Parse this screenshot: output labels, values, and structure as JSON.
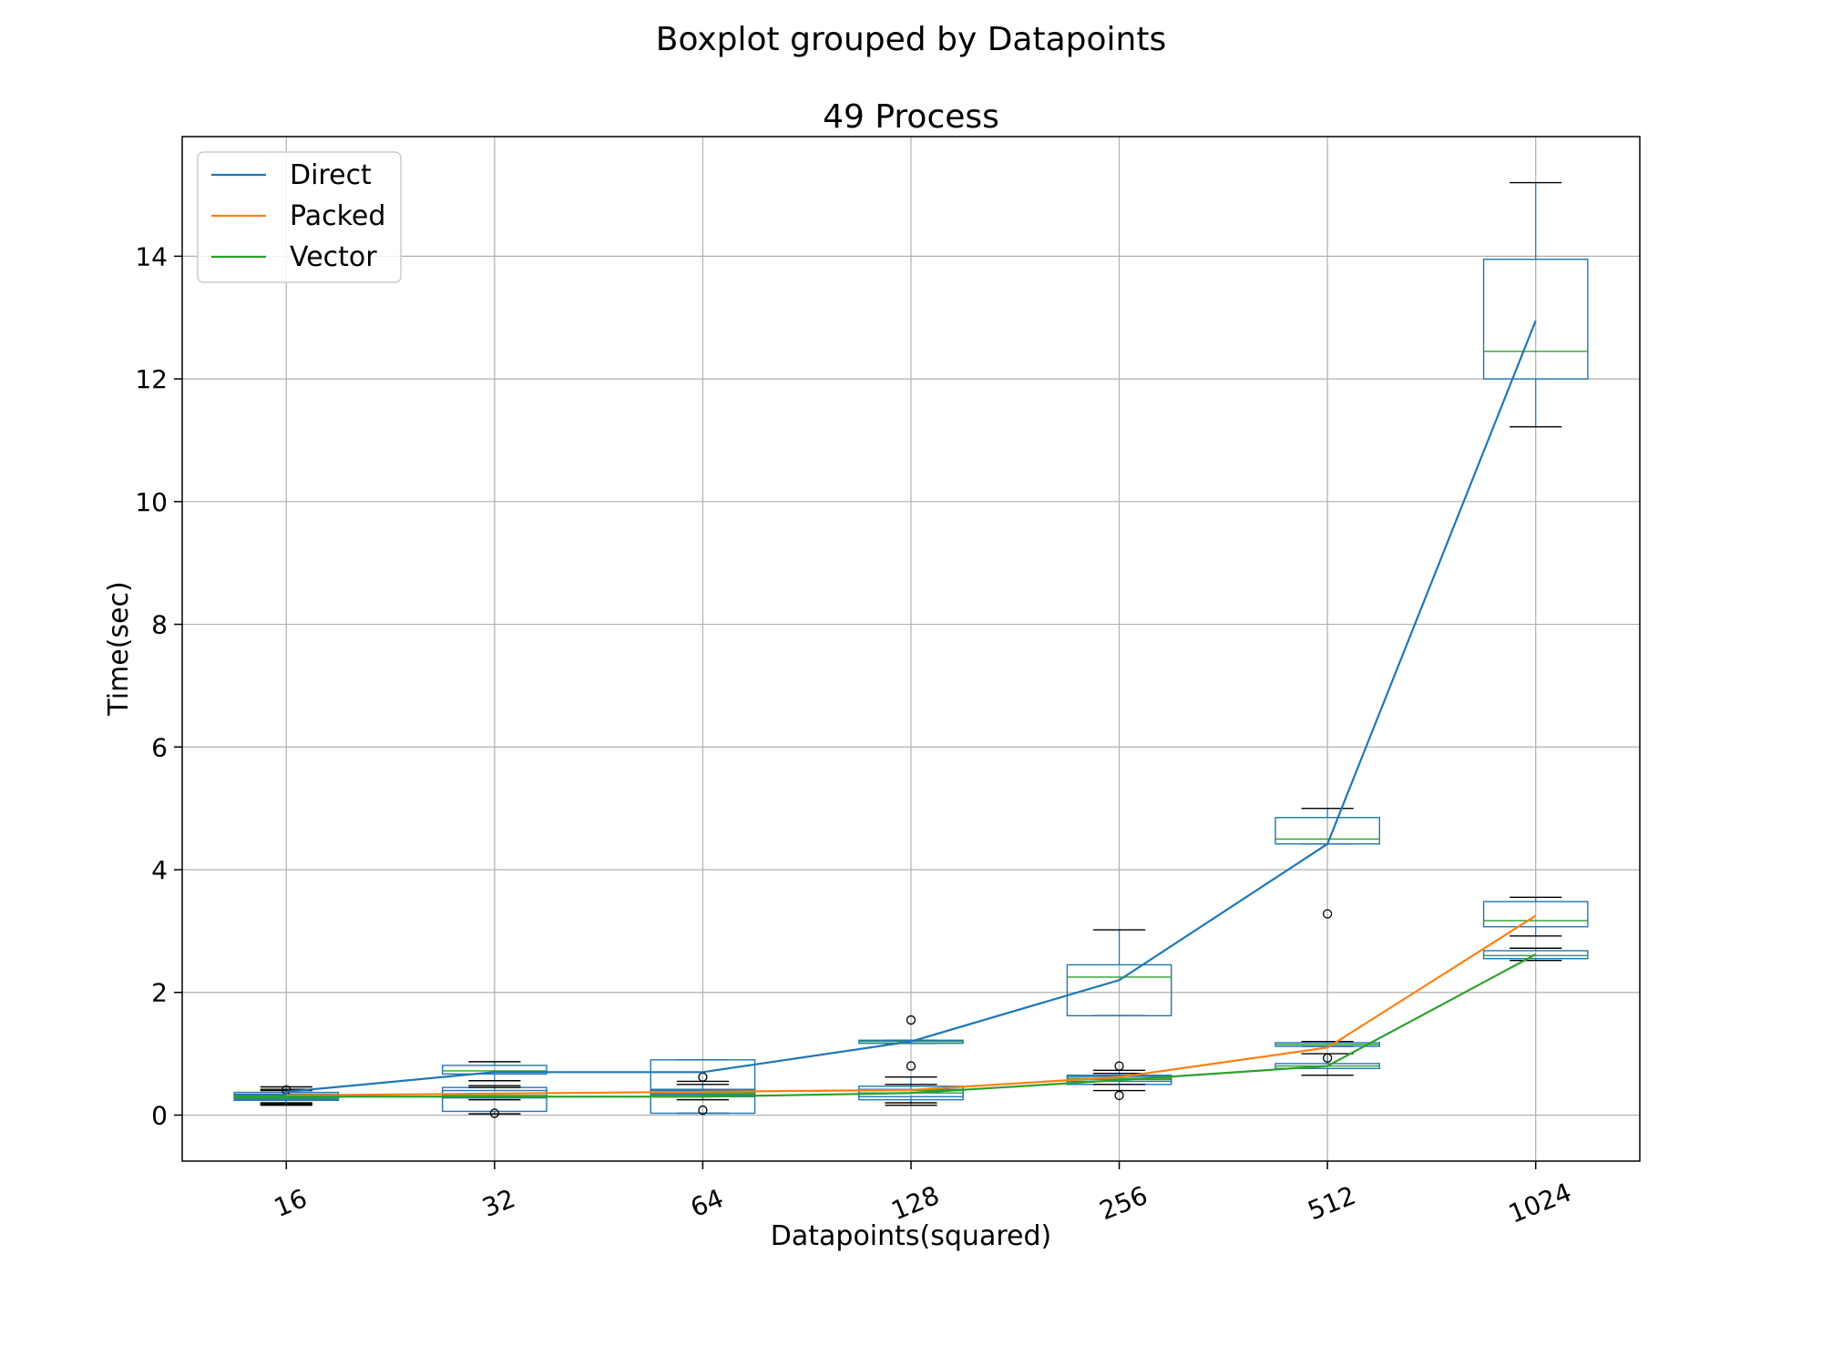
{
  "chart_data": {
    "type": "box",
    "suptitle": "Boxplot grouped by Datapoints",
    "title": "49 Process",
    "xlabel": "Datapoints(squared)",
    "ylabel": "Time(sec)",
    "categories": [
      "16",
      "32",
      "64",
      "128",
      "256",
      "512",
      "1024"
    ],
    "ylim": [
      -0.75,
      15.95
    ],
    "yticks": [
      0,
      2,
      4,
      6,
      8,
      10,
      12,
      14
    ],
    "grid": true,
    "legend_position": "upper-left",
    "series": [
      {
        "name": "Direct",
        "color": "#1f77b4",
        "line": [
          0.38,
          0.7,
          0.7,
          1.2,
          2.2,
          4.42,
          12.95
        ],
        "boxes": [
          {
            "whisker_low": 0.16,
            "q1": 0.26,
            "median": 0.31,
            "q3": 0.37,
            "whisker_high": 0.46,
            "outliers": [
              0.41
            ]
          },
          {
            "whisker_low": 0.56,
            "q1": 0.67,
            "median": 0.72,
            "q3": 0.81,
            "whisker_high": 0.87,
            "outliers": []
          },
          {
            "whisker_low": 0.03,
            "q1": 0.03,
            "median": 0.41,
            "q3": 0.9,
            "whisker_high": 0.9,
            "outliers": [
              0.62,
              0.08
            ]
          },
          {
            "whisker_low": 1.17,
            "q1": 1.17,
            "median": 1.2,
            "q3": 1.22,
            "whisker_high": 1.22,
            "outliers": [
              1.55,
              0.8
            ]
          },
          {
            "whisker_low": 1.62,
            "q1": 1.62,
            "median": 2.25,
            "q3": 2.45,
            "whisker_high": 3.02,
            "outliers": []
          },
          {
            "whisker_low": 4.42,
            "q1": 4.42,
            "median": 4.5,
            "q3": 4.85,
            "whisker_high": 5.0,
            "outliers": [
              3.28
            ]
          },
          {
            "whisker_low": 11.22,
            "q1": 12.0,
            "median": 12.45,
            "q3": 13.95,
            "whisker_high": 15.2,
            "outliers": []
          }
        ]
      },
      {
        "name": "Packed",
        "color": "#ff7f0e",
        "line": [
          0.32,
          0.35,
          0.38,
          0.41,
          0.62,
          1.1,
          3.25
        ],
        "boxes": [
          {
            "whisker_low": 0.2,
            "q1": 0.27,
            "median": 0.3,
            "q3": 0.34,
            "whisker_high": 0.42,
            "outliers": []
          },
          {
            "whisker_low": 0.02,
            "q1": 0.06,
            "median": 0.32,
            "q3": 0.45,
            "whisker_high": 0.48,
            "outliers": [
              0.03
            ]
          },
          {
            "whisker_low": 0.3,
            "q1": 0.33,
            "median": 0.37,
            "q3": 0.42,
            "whisker_high": 0.55,
            "outliers": []
          },
          {
            "whisker_low": 0.16,
            "q1": 0.25,
            "median": 0.4,
            "q3": 0.47,
            "whisker_high": 0.62,
            "outliers": []
          },
          {
            "whisker_low": 0.4,
            "q1": 0.5,
            "median": 0.58,
            "q3": 0.65,
            "whisker_high": 0.73,
            "outliers": [
              0.8,
              0.32
            ]
          },
          {
            "whisker_low": 1.12,
            "q1": 1.12,
            "median": 1.15,
            "q3": 1.18,
            "whisker_high": 1.2,
            "outliers": []
          },
          {
            "whisker_low": 2.92,
            "q1": 3.07,
            "median": 3.17,
            "q3": 3.48,
            "whisker_high": 3.55,
            "outliers": []
          }
        ]
      },
      {
        "name": "Vector",
        "color": "#2ca02c",
        "line": [
          0.3,
          0.3,
          0.3,
          0.36,
          0.57,
          0.8,
          2.62
        ],
        "boxes": [
          {
            "whisker_low": 0.18,
            "q1": 0.24,
            "median": 0.28,
            "q3": 0.33,
            "whisker_high": 0.4,
            "outliers": []
          },
          {
            "whisker_low": 0.25,
            "q1": 0.28,
            "median": 0.3,
            "q3": 0.4,
            "whisker_high": 0.45,
            "outliers": []
          },
          {
            "whisker_low": 0.25,
            "q1": 0.3,
            "median": 0.35,
            "q3": 0.4,
            "whisker_high": 0.5,
            "outliers": []
          },
          {
            "whisker_low": 0.2,
            "q1": 0.3,
            "median": 0.36,
            "q3": 0.42,
            "whisker_high": 0.5,
            "outliers": []
          },
          {
            "whisker_low": 0.5,
            "q1": 0.55,
            "median": 0.6,
            "q3": 0.63,
            "whisker_high": 0.68,
            "outliers": []
          },
          {
            "whisker_low": 0.65,
            "q1": 0.76,
            "median": 0.8,
            "q3": 0.84,
            "whisker_high": 1.0,
            "outliers": [
              0.93
            ]
          },
          {
            "whisker_low": 2.52,
            "q1": 2.55,
            "median": 2.6,
            "q3": 2.68,
            "whisker_high": 2.72,
            "outliers": []
          }
        ]
      }
    ]
  }
}
